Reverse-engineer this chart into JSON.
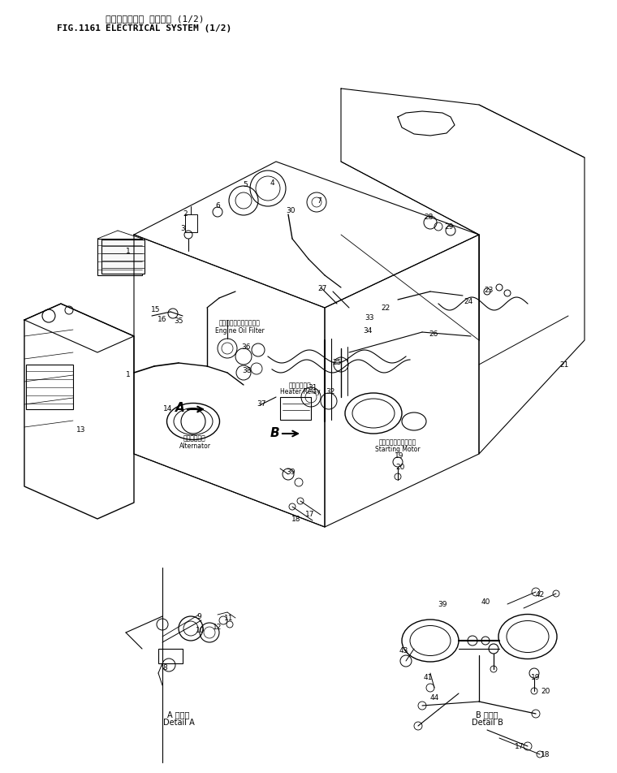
{
  "title_japanese": "エレクトリカル システム (1/2)",
  "title_english": "ELECTRICAL SYSTEM (1/2)",
  "fig_number": "FIG.1161",
  "background_color": "#ffffff",
  "line_color": "#000000",
  "text_color": "#000000",
  "fig_width": 7.6,
  "fig_height": 9.53,
  "dpi": 100
}
